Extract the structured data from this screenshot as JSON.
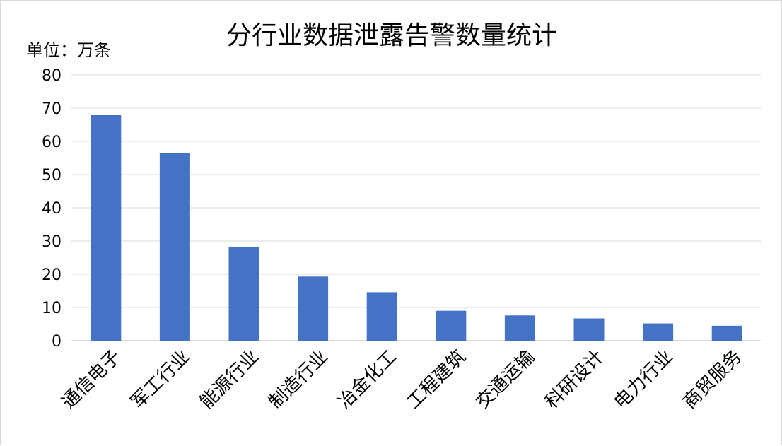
{
  "chart_data": {
    "type": "bar",
    "title": "分行业数据泄露告警数量统计",
    "unit_label": "单位：万条",
    "categories": [
      "通信电子",
      "军工行业",
      "能源行业",
      "制造行业",
      "冶金化工",
      "工程建筑",
      "交通运输",
      "科研设计",
      "电力行业",
      "商贸服务"
    ],
    "values": [
      68,
      56.5,
      28.3,
      19.3,
      14.6,
      9,
      7.6,
      6.7,
      5.2,
      4.5
    ],
    "ylim": [
      0,
      80
    ],
    "yticks": [
      0,
      10,
      20,
      30,
      40,
      50,
      60,
      70,
      80
    ],
    "grid": true,
    "legend": "none",
    "bar_color": "#4472c4",
    "grid_color": "#d9d9d9",
    "axis_color": "#bfbfbf"
  }
}
